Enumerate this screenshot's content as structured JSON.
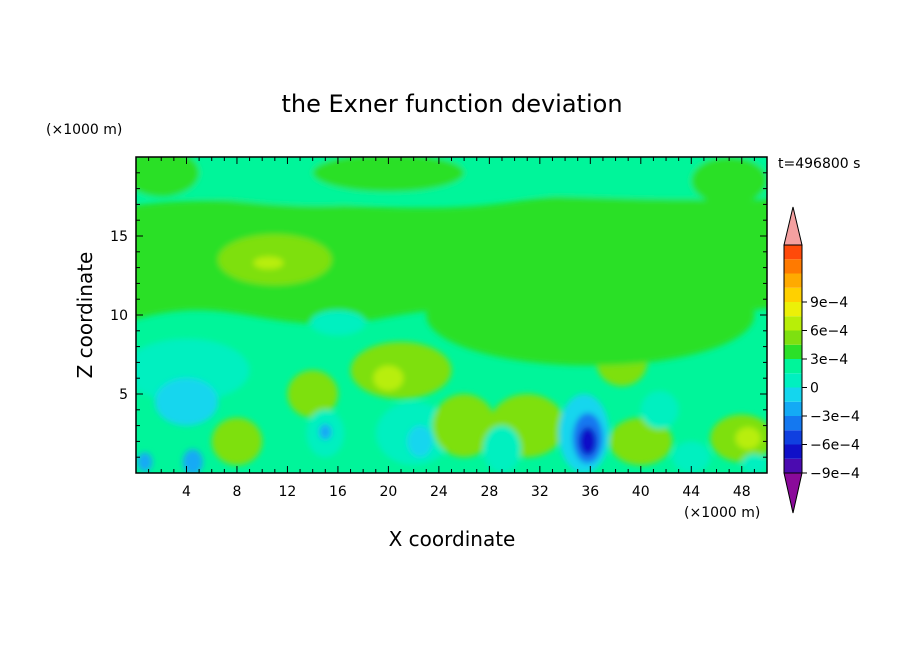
{
  "chart_data": {
    "type": "heatmap",
    "title": "the Exner function deviation",
    "xlabel": "X coordinate",
    "ylabel": "Z coordinate",
    "x_unit": "(×1000 m)",
    "z_unit": "(×1000 m)",
    "time_label": "t=496800 s",
    "xlim": [
      0,
      50
    ],
    "ylim": [
      0,
      20
    ],
    "x_ticks": [
      {
        "value": 4,
        "label": "4"
      },
      {
        "value": 8,
        "label": "8"
      },
      {
        "value": 12,
        "label": "12"
      },
      {
        "value": 16,
        "label": "16"
      },
      {
        "value": 20,
        "label": "20"
      },
      {
        "value": 24,
        "label": "24"
      },
      {
        "value": 28,
        "label": "28"
      },
      {
        "value": 32,
        "label": "32"
      },
      {
        "value": 36,
        "label": "36"
      },
      {
        "value": 40,
        "label": "40"
      },
      {
        "value": 44,
        "label": "44"
      },
      {
        "value": 48,
        "label": "48"
      }
    ],
    "y_ticks": [
      {
        "value": 5,
        "label": "5"
      },
      {
        "value": 10,
        "label": "10"
      },
      {
        "value": 15,
        "label": "15"
      }
    ],
    "colorbar": {
      "levels": [
        {
          "value": -0.0009,
          "label": "−9e−4"
        },
        {
          "value": -0.0006,
          "label": "−6e−4"
        },
        {
          "value": -0.0003,
          "label": "−3e−4"
        },
        {
          "value": 0,
          "label": "0"
        },
        {
          "value": 0.0003,
          "label": "3e−4"
        },
        {
          "value": 0.0006,
          "label": "6e−4"
        },
        {
          "value": 0.0009,
          "label": "9e−4"
        }
      ],
      "colors": [
        "#8a0a9a",
        "#4b0bb0",
        "#1010c8",
        "#1040e0",
        "#1478f0",
        "#14aaf5",
        "#14d6ee",
        "#00f0c0",
        "#00f59a",
        "#2be028",
        "#7ee010",
        "#b8ee08",
        "#ecf008",
        "#ffd000",
        "#ffaa00",
        "#ff7a00",
        "#ff4a0a",
        "#ff1a1a",
        "#f4a0a0"
      ]
    },
    "background_level": "0 to 1.5e-4",
    "regions": [
      {
        "level": 1,
        "shape": "band",
        "desc": "upper layer z 10-17 km, x 0-50",
        "zmin": 10.5,
        "zmax": 17.5
      },
      {
        "level": 0,
        "shape": "top",
        "zmin": 17.5,
        "zmax": 20
      },
      {
        "level": 2,
        "x": 11,
        "z": 13.5,
        "rx": 4.5,
        "rz": 1.6
      },
      {
        "level": 3,
        "x": 10.5,
        "z": 13.3,
        "rx": 1.2,
        "rz": 0.4
      },
      {
        "level": -1,
        "x": 4,
        "z": 6.5,
        "rx": 5,
        "rz": 2
      },
      {
        "level": -1,
        "x": 16,
        "z": 9.5,
        "rx": 2.2,
        "rz": 0.8
      },
      {
        "level": -2,
        "x": 4,
        "z": 4.5,
        "rx": 2.5,
        "rz": 1.5
      },
      {
        "level": -3,
        "x": 4.5,
        "z": 0.7,
        "rx": 0.8,
        "rz": 0.8
      },
      {
        "level": -3,
        "x": 0.7,
        "z": 0.7,
        "rx": 0.6,
        "rz": 0.6
      },
      {
        "level": 2,
        "x": 8,
        "z": 2,
        "rx": 2,
        "rz": 1.5
      },
      {
        "level": 2,
        "x": 14,
        "z": 5,
        "rx": 2,
        "rz": 1.5
      },
      {
        "level": 2,
        "x": 21,
        "z": 6.5,
        "rx": 4,
        "rz": 1.8
      },
      {
        "level": 3,
        "x": 20,
        "z": 6,
        "rx": 1.2,
        "rz": 0.8
      },
      {
        "level": -1,
        "x": 15,
        "z": 2.5,
        "rx": 1.5,
        "rz": 1.5
      },
      {
        "level": -3,
        "x": 15,
        "z": 2.6,
        "rx": 0.5,
        "rz": 0.5
      },
      {
        "level": -1,
        "x": 22,
        "z": 2.5,
        "rx": 3,
        "rz": 2
      },
      {
        "level": -2,
        "x": 22.5,
        "z": 2,
        "rx": 1,
        "rz": 1
      },
      {
        "level": 2,
        "x": 26,
        "z": 3,
        "rx": 2.5,
        "rz": 2
      },
      {
        "level": 2,
        "x": 31,
        "z": 3,
        "rx": 3,
        "rz": 2
      },
      {
        "level": -1,
        "x": 29,
        "z": 1.5,
        "rx": 1.5,
        "rz": 1.5
      },
      {
        "level": -2,
        "x": 35.5,
        "z": 2.5,
        "rx": 2,
        "rz": 2.5
      },
      {
        "level": -4,
        "x": 35.8,
        "z": 2.2,
        "rx": 1.2,
        "rz": 1.6
      },
      {
        "level": -6,
        "x": 35.8,
        "z": 2.0,
        "rx": 0.7,
        "rz": 0.9
      },
      {
        "level": 2,
        "x": 38.5,
        "z": 7,
        "rx": 2,
        "rz": 1.5
      },
      {
        "level": 2,
        "x": 40,
        "z": 2,
        "rx": 2.5,
        "rz": 1.5
      },
      {
        "level": -1,
        "x": 41.5,
        "z": 4,
        "rx": 1.5,
        "rz": 1.2
      },
      {
        "level": -1,
        "x": 44,
        "z": 1,
        "rx": 1.5,
        "rz": 1
      },
      {
        "level": 2,
        "x": 48,
        "z": 2.2,
        "rx": 2.5,
        "rz": 1.5
      },
      {
        "level": 3,
        "x": 48.5,
        "z": 2.2,
        "rx": 1,
        "rz": 0.7
      },
      {
        "level": -1,
        "x": 49,
        "z": 0.6,
        "rx": 1,
        "rz": 0.6
      },
      {
        "level": 1,
        "x": 36,
        "z": 10,
        "rx": 13,
        "rz": 3.2
      },
      {
        "level": 1,
        "x": 2,
        "z": 19,
        "rx": 3,
        "rz": 1.5
      },
      {
        "level": 1,
        "x": 47,
        "z": 18.5,
        "rx": 3,
        "rz": 1.5
      },
      {
        "level": 1,
        "x": 20,
        "z": 19,
        "rx": 6,
        "rz": 1.2
      }
    ]
  }
}
